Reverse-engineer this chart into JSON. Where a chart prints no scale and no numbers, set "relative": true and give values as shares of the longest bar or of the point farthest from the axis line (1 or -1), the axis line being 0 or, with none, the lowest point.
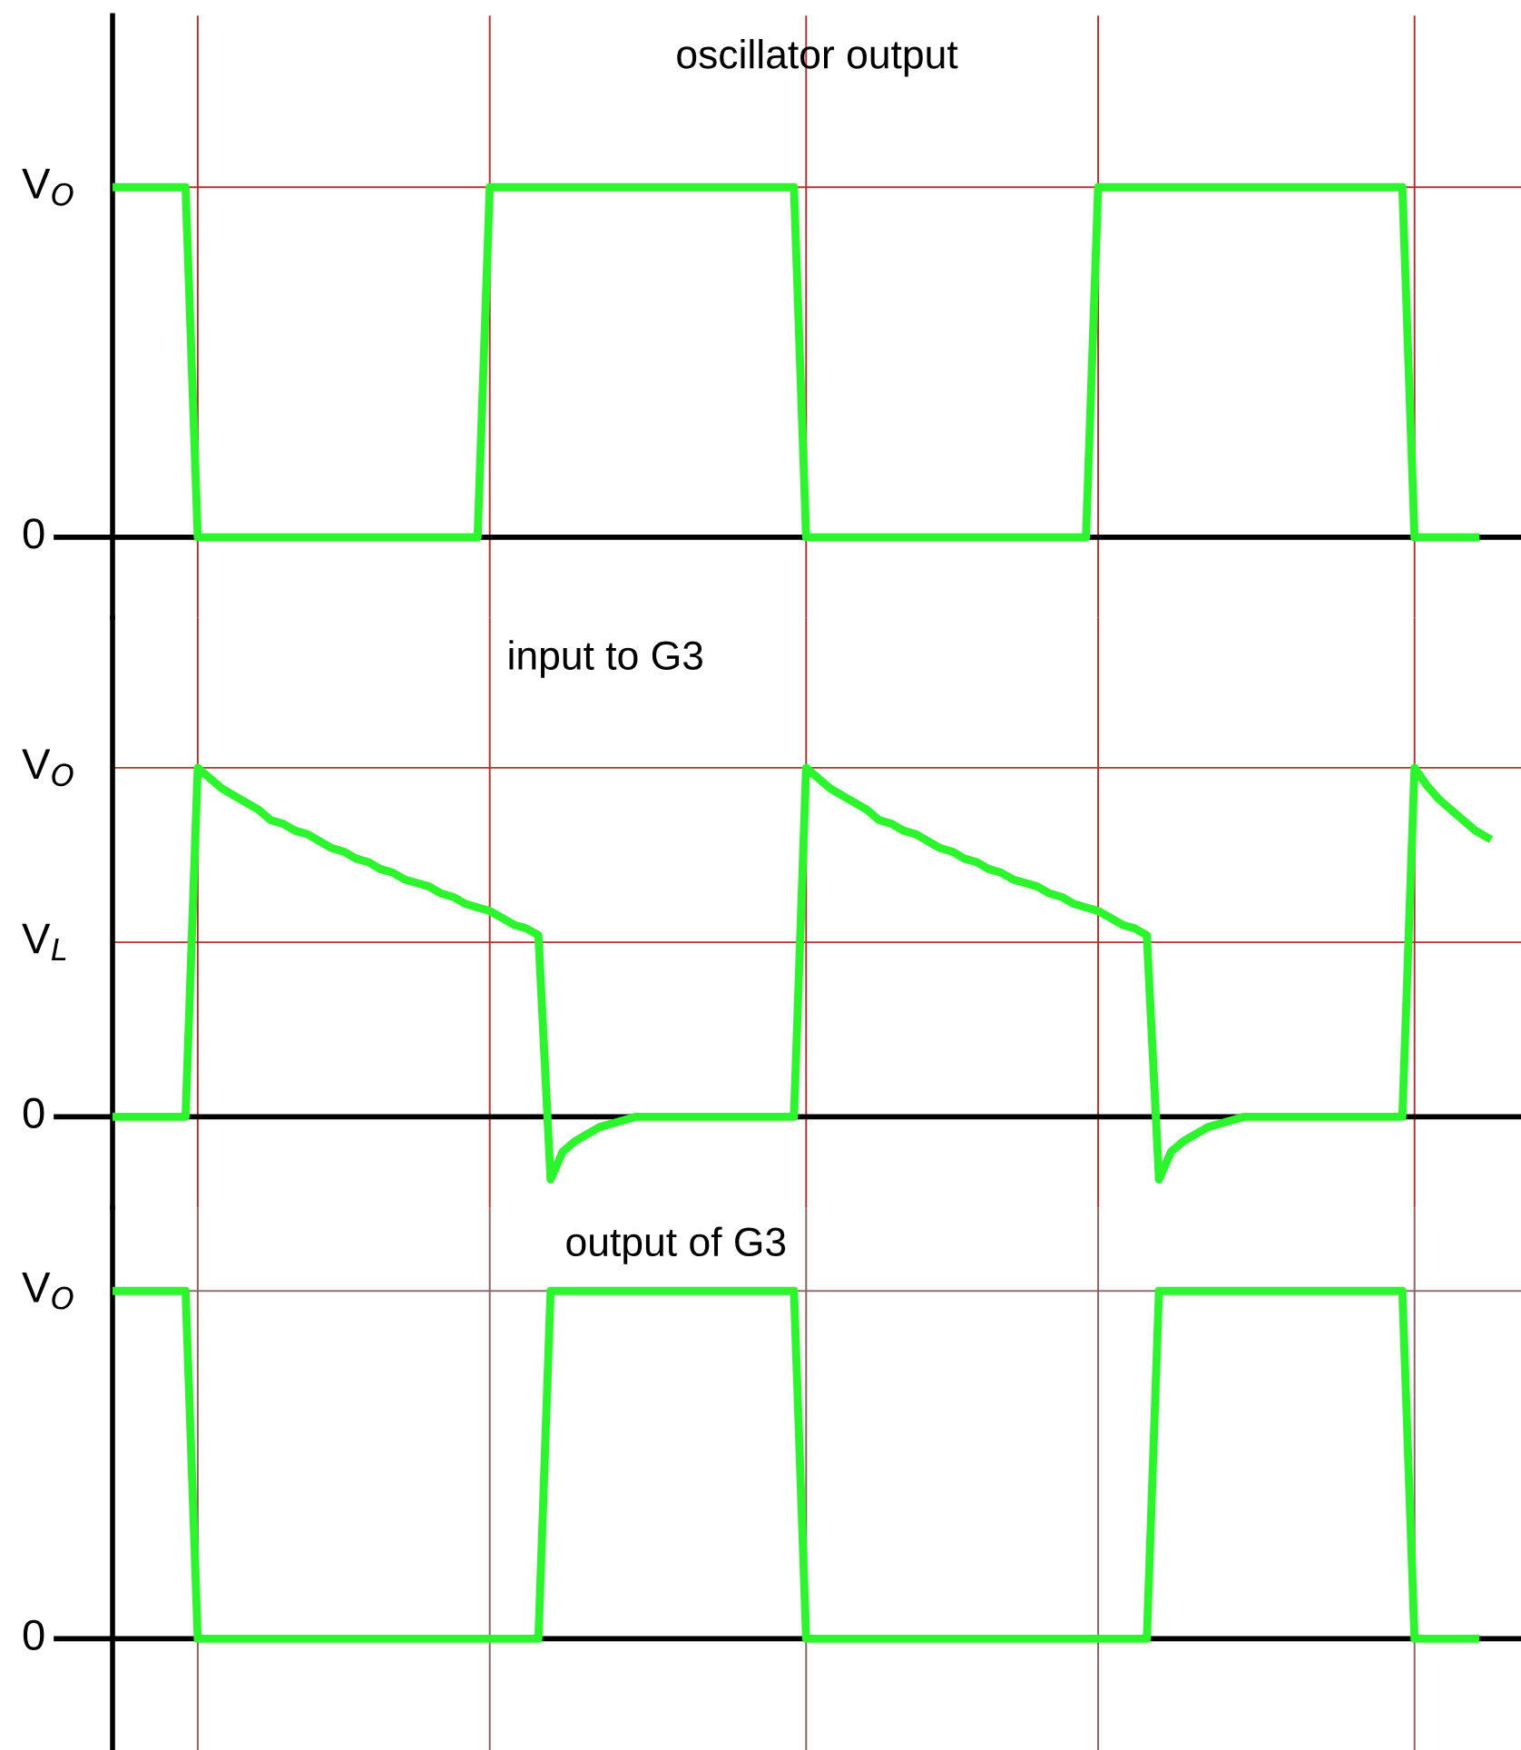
{
  "chart_data": [
    {
      "type": "line",
      "title": "oscillator output",
      "relative": true,
      "categories": [
        null,
        null,
        null,
        null,
        null,
        null,
        null,
        null,
        null,
        null,
        null,
        null,
        null,
        null,
        null,
        null,
        null,
        null,
        null,
        null,
        null,
        null,
        null,
        null,
        null,
        null,
        null,
        null,
        null,
        null,
        null,
        null,
        null,
        null,
        null,
        null,
        null,
        null,
        null,
        null,
        null,
        null,
        null,
        null,
        null,
        null,
        null,
        null,
        null,
        null,
        null,
        null,
        null,
        null,
        null,
        null,
        null,
        null,
        null,
        null,
        null,
        null,
        null,
        null,
        null,
        null,
        null,
        null,
        null,
        null,
        null,
        null,
        null,
        null,
        null,
        null,
        null,
        null,
        null,
        null,
        null,
        null,
        null,
        null,
        null,
        null,
        null,
        null,
        null,
        null,
        null,
        null,
        null,
        null,
        null,
        null,
        null,
        null,
        null,
        null,
        null,
        null,
        null,
        null,
        null,
        null,
        null,
        null,
        null,
        null,
        null,
        null,
        null,
        null
      ],
      "series": [
        {
          "color": "#2df52d",
          "values": [
            1,
            1,
            1,
            1,
            1,
            1,
            1,
            0,
            0,
            0,
            0,
            0,
            0,
            0,
            0,
            0,
            0,
            0,
            0,
            0,
            0,
            0,
            0,
            0,
            0,
            0,
            0,
            0,
            0,
            0,
            0,
            1,
            1,
            1,
            1,
            1,
            1,
            1,
            1,
            1,
            1,
            1,
            1,
            1,
            1,
            1,
            1,
            1,
            1,
            1,
            1,
            1,
            1,
            1,
            1,
            1,
            1,
            0,
            0,
            0,
            0,
            0,
            0,
            0,
            0,
            0,
            0,
            0,
            0,
            0,
            0,
            0,
            0,
            0,
            0,
            0,
            0,
            0,
            0,
            0,
            0,
            1,
            1,
            1,
            1,
            1,
            1,
            1,
            1,
            1,
            1,
            1,
            1,
            1,
            1,
            1,
            1,
            1,
            1,
            1,
            1,
            1,
            1,
            1,
            1,
            1,
            1,
            0,
            0,
            0,
            0,
            0,
            0,
            null
          ]
        }
      ],
      "ref_lines": [
        {
          "axis": "y",
          "value": 1,
          "label": "V$_{O}$",
          "color": "#b33434"
        },
        {
          "axis": "y",
          "value": 0,
          "label": "0",
          "color": "#000000"
        }
      ],
      "grid": "x"
    },
    {
      "type": "line",
      "title": "input to G3",
      "relative": true,
      "categories": [
        null,
        null,
        null,
        null,
        null,
        null,
        null,
        null,
        null,
        null,
        null,
        null,
        null,
        null,
        null,
        null,
        null,
        null,
        null,
        null,
        null,
        null,
        null,
        null,
        null,
        null,
        null,
        null,
        null,
        null,
        null,
        null,
        null,
        null,
        null,
        null,
        null,
        null,
        null,
        null,
        null,
        null,
        null,
        null,
        null,
        null,
        null,
        null,
        null,
        null,
        null,
        null,
        null,
        null,
        null,
        null,
        null,
        null,
        null,
        null,
        null,
        null,
        null,
        null,
        null,
        null,
        null,
        null,
        null,
        null,
        null,
        null,
        null,
        null,
        null,
        null,
        null,
        null,
        null,
        null,
        null,
        null,
        null,
        null,
        null,
        null,
        null,
        null,
        null,
        null,
        null,
        null,
        null,
        null,
        null,
        null,
        null,
        null,
        null,
        null,
        null,
        null,
        null,
        null,
        null,
        null,
        null,
        null,
        null,
        null,
        null,
        null,
        null,
        null
      ],
      "series": [
        {
          "color": "#2df52d",
          "values": [
            0,
            0,
            0,
            0,
            0,
            0,
            0,
            1,
            0.97,
            0.94,
            0.92,
            0.9,
            0.88,
            0.85,
            0.84,
            0.82,
            0.81,
            0.79,
            0.77,
            0.76,
            0.74,
            0.73,
            0.71,
            0.7,
            0.68,
            0.67,
            0.66,
            0.64,
            0.63,
            0.61,
            0.6,
            0.59,
            0.57,
            0.55,
            0.54,
            0.52,
            -0.18,
            -0.1,
            -0.07,
            -0.05,
            -0.03,
            -0.02,
            -0.01,
            0,
            0,
            0,
            0,
            0,
            0,
            0,
            0,
            0,
            0,
            0,
            0,
            0,
            0,
            1,
            0.97,
            0.94,
            0.92,
            0.9,
            0.88,
            0.85,
            0.84,
            0.82,
            0.81,
            0.79,
            0.77,
            0.76,
            0.74,
            0.73,
            0.71,
            0.7,
            0.68,
            0.67,
            0.66,
            0.64,
            0.63,
            0.61,
            0.6,
            0.59,
            0.57,
            0.55,
            0.54,
            0.52,
            -0.18,
            -0.1,
            -0.07,
            -0.05,
            -0.03,
            -0.02,
            -0.01,
            0,
            0,
            0,
            0,
            0,
            0,
            0,
            0,
            0,
            0,
            0,
            0,
            0,
            0,
            1,
            0.95,
            0.91,
            0.88,
            0.85,
            0.82,
            0.8
          ]
        }
      ],
      "ref_lines": [
        {
          "axis": "y",
          "value": 1,
          "label": "V$_{O}$",
          "color": "#b33434"
        },
        {
          "axis": "y",
          "value": 0.5,
          "label": "V$_{L}$",
          "color": "#b33434"
        },
        {
          "axis": "y",
          "value": 0,
          "label": "0",
          "color": "#000000"
        }
      ],
      "grid": "x"
    },
    {
      "type": "line",
      "title": "output of G3",
      "relative": true,
      "categories": [
        null,
        null,
        null,
        null,
        null,
        null,
        null,
        null,
        null,
        null,
        null,
        null,
        null,
        null,
        null,
        null,
        null,
        null,
        null,
        null,
        null,
        null,
        null,
        null,
        null,
        null,
        null,
        null,
        null,
        null,
        null,
        null,
        null,
        null,
        null,
        null,
        null,
        null,
        null,
        null,
        null,
        null,
        null,
        null,
        null,
        null,
        null,
        null,
        null,
        null,
        null,
        null,
        null,
        null,
        null,
        null,
        null,
        null,
        null,
        null,
        null,
        null,
        null,
        null,
        null,
        null,
        null,
        null,
        null,
        null,
        null,
        null,
        null,
        null,
        null,
        null,
        null,
        null,
        null,
        null,
        null,
        null,
        null,
        null,
        null,
        null,
        null,
        null,
        null,
        null,
        null,
        null,
        null,
        null,
        null,
        null,
        null,
        null,
        null,
        null,
        null,
        null,
        null,
        null,
        null,
        null,
        null,
        null,
        null,
        null,
        null,
        null,
        null,
        null
      ],
      "series": [
        {
          "color": "#2df52d",
          "values": [
            1,
            1,
            1,
            1,
            1,
            1,
            1,
            0,
            0,
            0,
            0,
            0,
            0,
            0,
            0,
            0,
            0,
            0,
            0,
            0,
            0,
            0,
            0,
            0,
            0,
            0,
            0,
            0,
            0,
            0,
            0,
            0,
            0,
            0,
            0,
            0,
            1,
            1,
            1,
            1,
            1,
            1,
            1,
            1,
            1,
            1,
            1,
            1,
            1,
            1,
            1,
            1,
            1,
            1,
            1,
            1,
            1,
            0,
            0,
            0,
            0,
            0,
            0,
            0,
            0,
            0,
            0,
            0,
            0,
            0,
            0,
            0,
            0,
            0,
            0,
            0,
            0,
            0,
            0,
            0,
            0,
            0,
            0,
            0,
            0,
            0,
            1,
            1,
            1,
            1,
            1,
            1,
            1,
            1,
            1,
            1,
            1,
            1,
            1,
            1,
            1,
            1,
            1,
            1,
            1,
            1,
            1,
            0,
            0,
            0,
            0,
            0,
            0,
            null
          ]
        }
      ],
      "ref_lines": [
        {
          "axis": "y",
          "value": 1,
          "label": "V$_{O}$",
          "color": "#8a7070"
        },
        {
          "axis": "y",
          "value": 0,
          "label": "0",
          "color": "#000000"
        }
      ],
      "grid": "x"
    }
  ]
}
